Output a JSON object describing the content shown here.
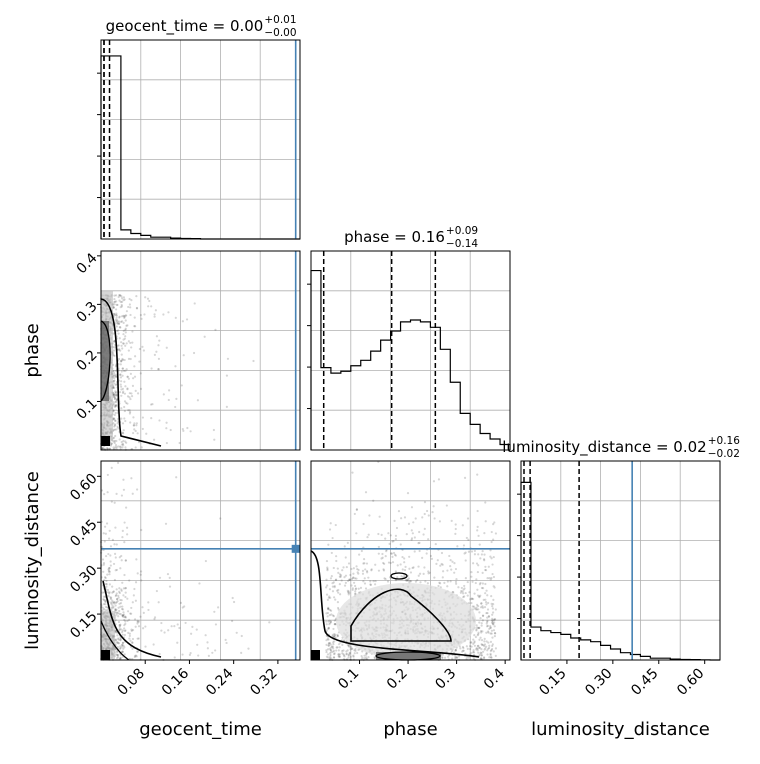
{
  "chart_data": {
    "type": "corner",
    "parameters": [
      "geocent_time",
      "phase",
      "luminosity_distance"
    ],
    "truths": {
      "geocent_time": 0.3522,
      "phase": null,
      "luminosity_distance": 0.3631
    },
    "quantile_lines": {
      "geocent_time": [
        0.0,
        0.0,
        0.01
      ],
      "phase": [
        0.02,
        0.16,
        0.25
      ],
      "luminosity_distance": [
        0.0,
        0.02,
        0.18
      ]
    },
    "titles": [
      {
        "param": "geocent_time",
        "value": "0.00",
        "plus": "+0.01",
        "minus": "−0.00"
      },
      {
        "param": "phase",
        "value": "0.16",
        "plus": "+0.09",
        "minus": "−0.14"
      },
      {
        "param": "luminosity_distance",
        "value": "0.02",
        "plus": "+0.16",
        "minus": "−0.02"
      }
    ],
    "axes": {
      "geocent_time": {
        "range": [
          0.0,
          0.36
        ],
        "ticks": [
          "0.08",
          "0.16",
          "0.24",
          "0.32"
        ],
        "tick_values": [
          0.08,
          0.16,
          0.24,
          0.32
        ]
      },
      "phase": {
        "range": [
          0.0,
          0.41
        ],
        "ticks": [
          "0.1",
          "0.2",
          "0.3",
          "0.4"
        ],
        "tick_values": [
          0.1,
          0.2,
          0.3,
          0.4
        ]
      },
      "luminosity_distance": {
        "range": [
          0.0,
          0.65
        ],
        "ticks": [
          "0.15",
          "0.30",
          "0.45",
          "0.60"
        ],
        "tick_values": [
          0.15,
          0.3,
          0.45,
          0.6
        ]
      }
    },
    "histograms": {
      "geocent_time": [
        1.0,
        1.0,
        0.05,
        0.03,
        0.02,
        0.01,
        0.01,
        0.005,
        0.003,
        0.002,
        0.0,
        0.0,
        0.0,
        0.0,
        0.0,
        0.0,
        0.0,
        0.0,
        0.0,
        0.0
      ],
      "phase": [
        0.98,
        0.45,
        0.42,
        0.43,
        0.46,
        0.49,
        0.54,
        0.6,
        0.65,
        0.7,
        0.71,
        0.7,
        0.67,
        0.55,
        0.37,
        0.2,
        0.14,
        0.09,
        0.06,
        0.03
      ],
      "luminosity_distance": [
        0.97,
        0.18,
        0.16,
        0.15,
        0.14,
        0.12,
        0.11,
        0.1,
        0.08,
        0.06,
        0.04,
        0.03,
        0.02,
        0.01,
        0.01,
        0.005,
        0.003,
        0.002,
        0.001,
        0.0
      ]
    },
    "grid": true
  }
}
